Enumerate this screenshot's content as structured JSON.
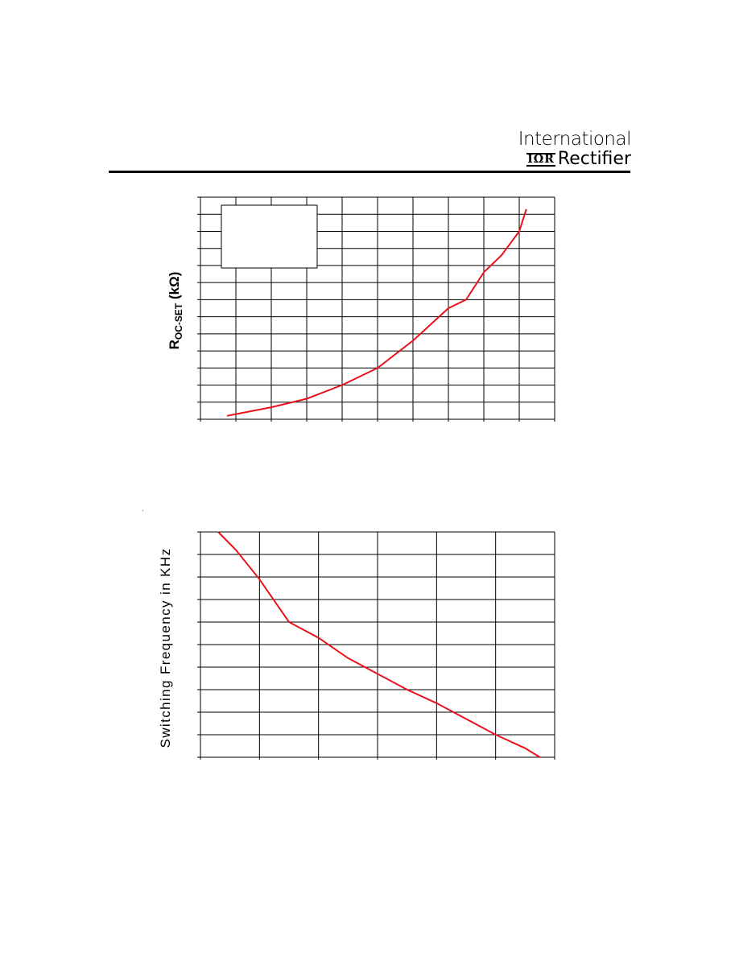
{
  "header": {
    "logo_line1": "International",
    "logo_mark": "IΩR",
    "logo_line2": "Rectifier"
  },
  "colors": {
    "curve": "#e8121b",
    "grid": "#000000"
  },
  "chart_data": [
    {
      "type": "line",
      "ylabel_main": "R",
      "ylabel_sub": "OC-SET",
      "ylabel_unit": " (kΩ)",
      "xlim": [
        0,
        10
      ],
      "ylim": [
        0,
        13
      ],
      "x_divisions": 10,
      "y_divisions": 13,
      "legend_box": "top-left",
      "grid": true,
      "series": [
        {
          "x": [
            0.75,
            1,
            2,
            3,
            4,
            5,
            6,
            7,
            7.5,
            8,
            8.5,
            9,
            9.2
          ],
          "y": [
            0.2,
            0.3,
            0.7,
            1.2,
            2.0,
            3.0,
            4.6,
            6.5,
            7.0,
            8.6,
            9.6,
            11.0,
            12.3
          ]
        }
      ]
    },
    {
      "type": "line",
      "ylabel": "Switching Frequency in KHz",
      "xlim": [
        0,
        6
      ],
      "ylim": [
        0,
        10
      ],
      "x_divisions": 6,
      "y_divisions": 10,
      "grid": true,
      "series": [
        {
          "x": [
            0.3,
            0.6,
            1,
            1.5,
            2,
            2.5,
            3,
            3.5,
            4,
            4.5,
            5,
            5.5,
            5.75
          ],
          "y": [
            10,
            9.2,
            7.9,
            6.0,
            5.3,
            4.4,
            3.7,
            3.0,
            2.4,
            1.7,
            1.0,
            0.4,
            0
          ]
        }
      ]
    }
  ]
}
